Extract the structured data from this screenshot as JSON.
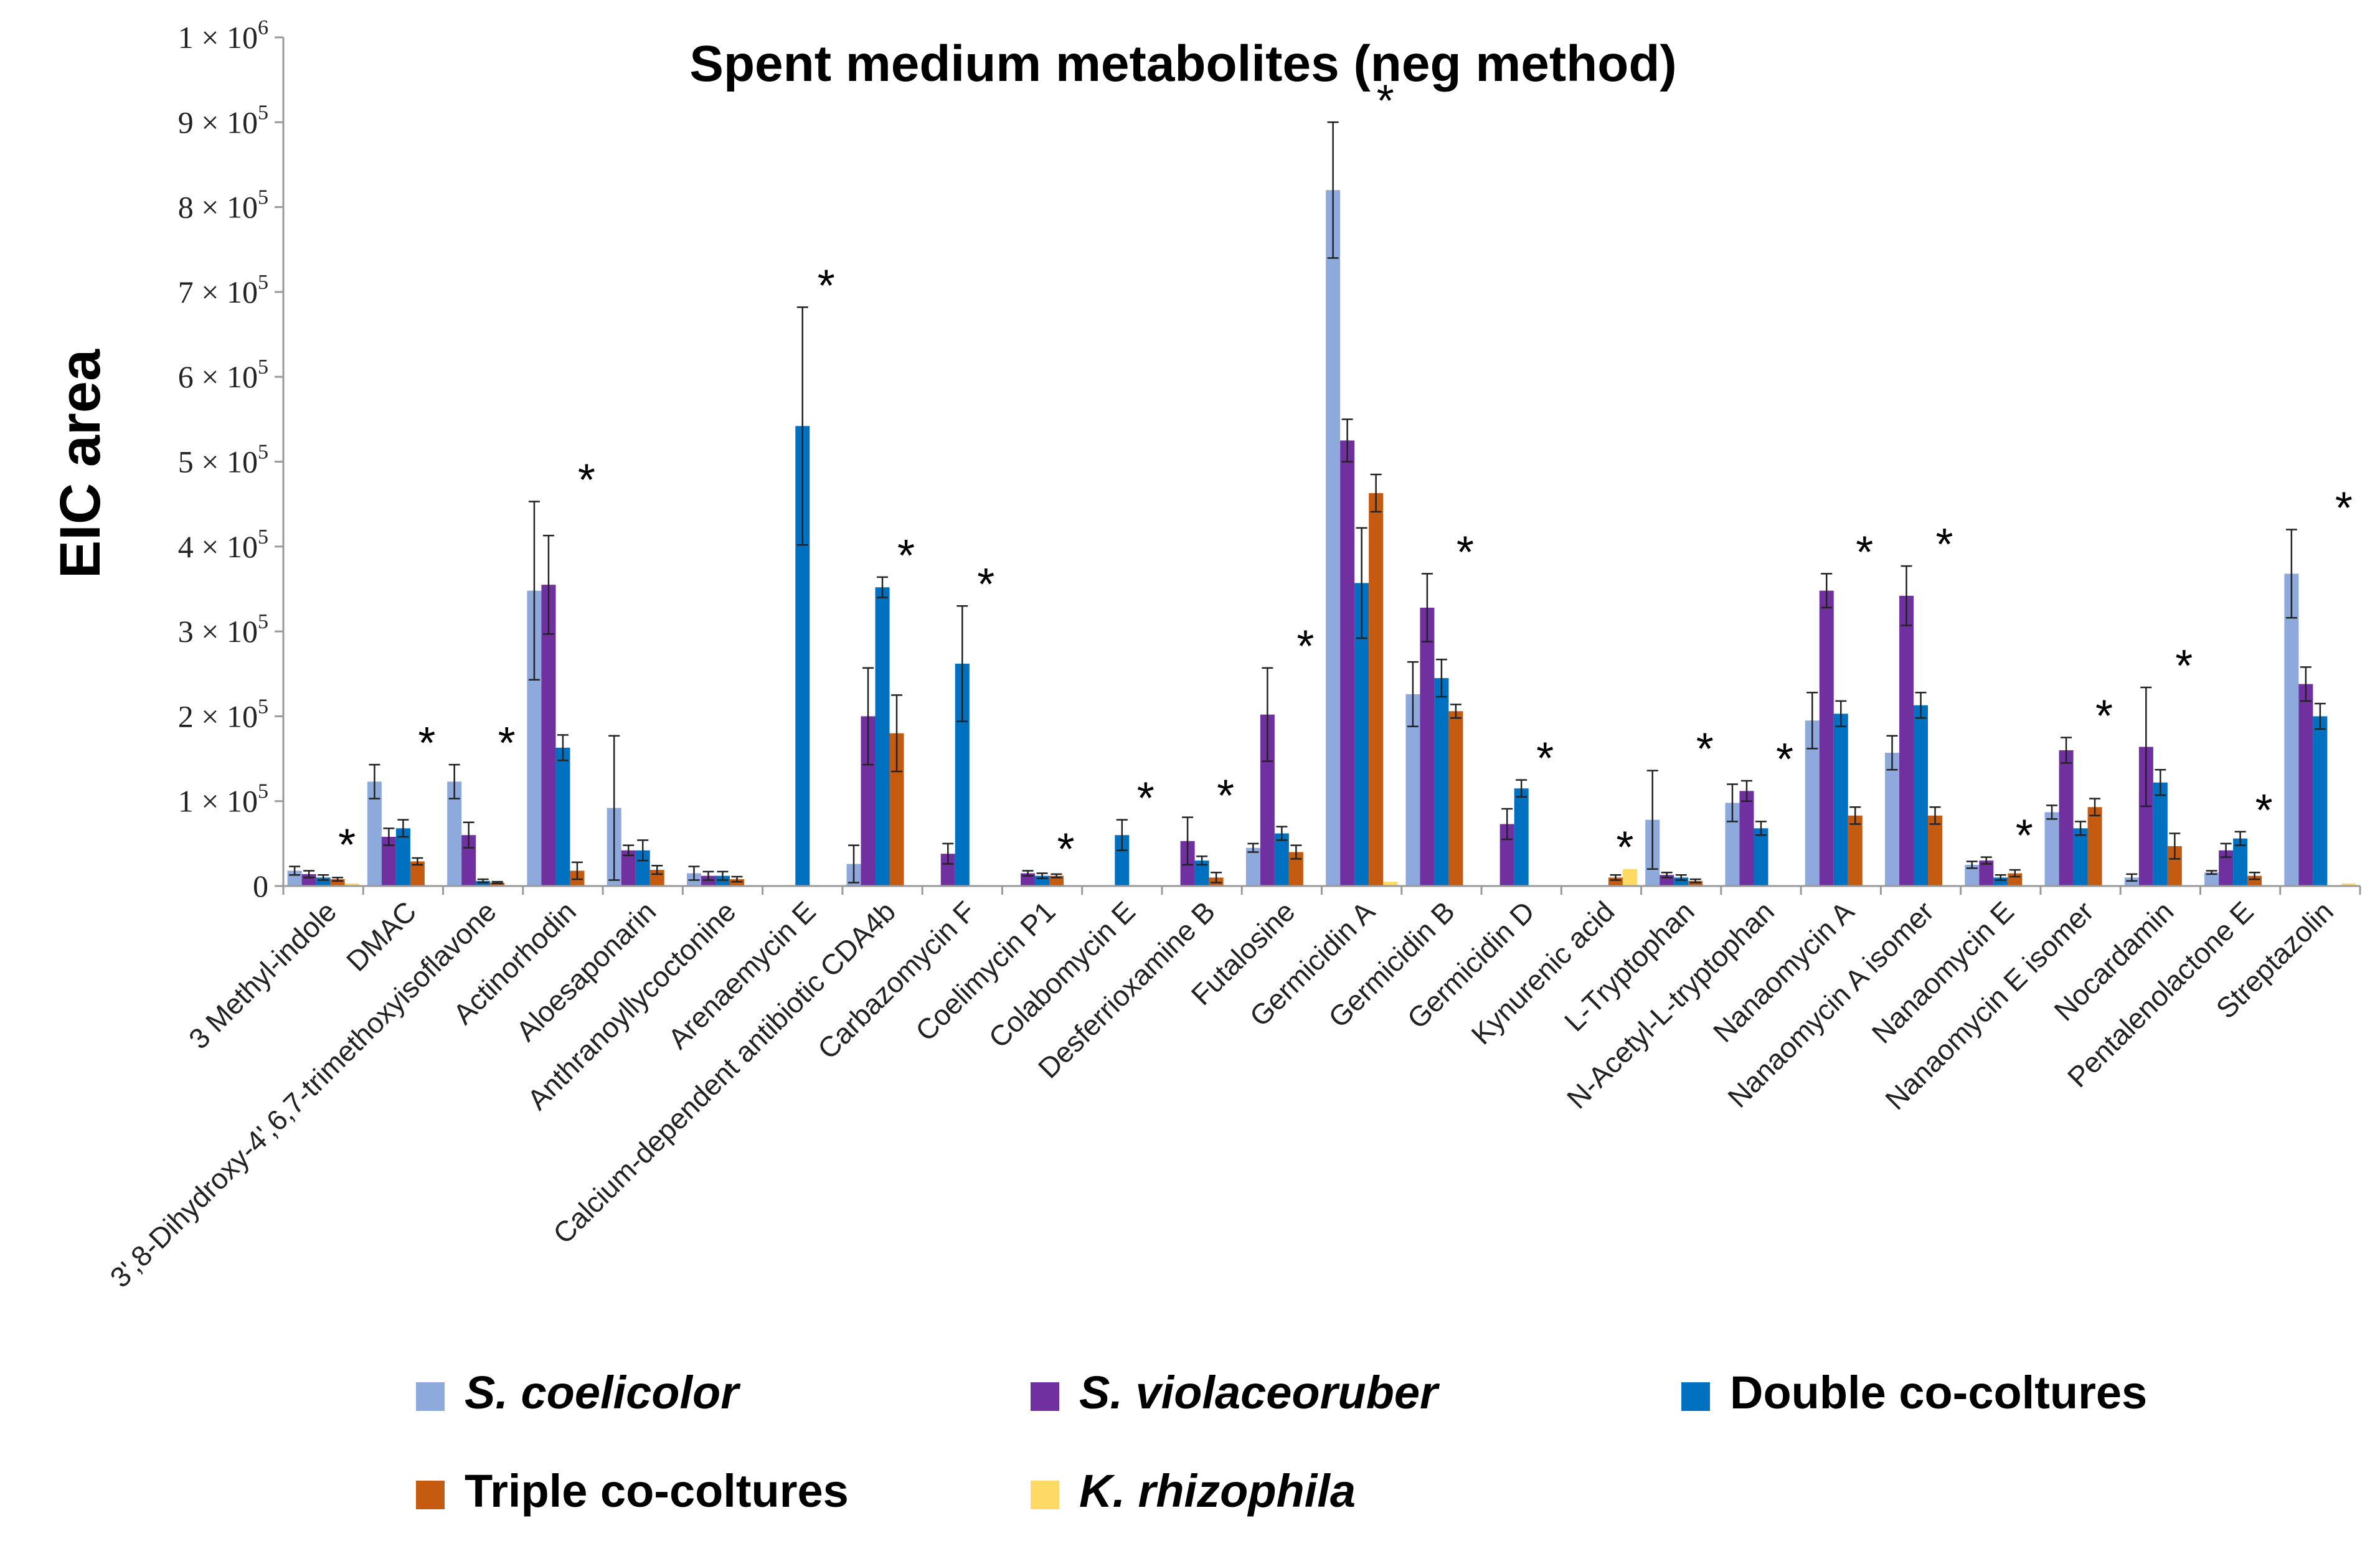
{
  "chart_data": {
    "type": "bar",
    "title": "Spent medium metabolites (neg method)",
    "xlabel": "",
    "ylabel": "EIC area",
    "ylim": [
      0,
      1000000
    ],
    "ytick_values": [
      0,
      100000,
      200000,
      300000,
      400000,
      500000,
      600000,
      700000,
      800000,
      900000,
      1000000
    ],
    "yticks": [
      {
        "base": "0",
        "exp": ""
      },
      {
        "base": "1 × 10",
        "exp": "5"
      },
      {
        "base": "2 × 10",
        "exp": "5"
      },
      {
        "base": "3 × 10",
        "exp": "5"
      },
      {
        "base": "4 × 10",
        "exp": "5"
      },
      {
        "base": "5 × 10",
        "exp": "5"
      },
      {
        "base": "6 × 10",
        "exp": "5"
      },
      {
        "base": "7 × 10",
        "exp": "5"
      },
      {
        "base": "8 × 10",
        "exp": "5"
      },
      {
        "base": "9 × 10",
        "exp": "5"
      },
      {
        "base": "1 × 10",
        "exp": "6"
      }
    ],
    "categories": [
      "3 Methyl-indole",
      "DMAC",
      "3',8-Dihydroxy-4',6,7-trimethoxyisoflavone",
      "Actinorhodin",
      "Aloesaponarin",
      "Anthranoyllycoctonine",
      "Arenaemycin E",
      "Calcium-dependent antibiotic CDA4b",
      "Carbazomycin F",
      "Coelimycin P1",
      "Colabomycin E",
      "Desferrioxamine B",
      "Futalosine",
      "Germicidin A",
      "Germicidin B",
      "Germicidin D",
      "Kynurenic acid",
      "L-Tryptophan",
      "N-Acetyl-L-tryptophan",
      "Nanaomycin A",
      "Nanaomycin A isomer",
      "Nanaomycin E",
      "Nanaomycin E isomer",
      "Nocardamin",
      "Pentalenolactone E",
      "Streptazolin"
    ],
    "significance_marker": "*",
    "significant": [
      true,
      true,
      true,
      true,
      false,
      false,
      true,
      true,
      true,
      true,
      true,
      true,
      true,
      true,
      true,
      true,
      true,
      true,
      true,
      true,
      true,
      true,
      true,
      true,
      true,
      true
    ],
    "series": [
      {
        "name": "S. coelicolor",
        "italic": true,
        "color": "#8EA9DB",
        "values": [
          18000,
          123000,
          123000,
          348000,
          92000,
          15000,
          0,
          26000,
          0,
          0,
          0,
          0,
          45000,
          820000,
          226000,
          0,
          0,
          78000,
          98000,
          195000,
          157000,
          25000,
          87000,
          10000,
          16000,
          368000
        ],
        "errors": [
          5000,
          20000,
          20000,
          105000,
          85000,
          8000,
          0,
          22000,
          0,
          0,
          0,
          0,
          5000,
          80000,
          38000,
          0,
          0,
          58000,
          22000,
          33000,
          20000,
          4000,
          8000,
          4000,
          2000,
          52000
        ]
      },
      {
        "name": "S. violaceoruber",
        "italic": true,
        "color": "#7030A0",
        "values": [
          14000,
          58000,
          60000,
          355000,
          42000,
          12000,
          0,
          200000,
          38000,
          15000,
          0,
          53000,
          202000,
          525000,
          328000,
          73000,
          0,
          13000,
          112000,
          348000,
          342000,
          30000,
          160000,
          164000,
          42000,
          238000
        ],
        "errors": [
          4000,
          10000,
          15000,
          58000,
          6000,
          5000,
          0,
          57000,
          12000,
          3000,
          0,
          28000,
          55000,
          25000,
          40000,
          18000,
          0,
          3000,
          12000,
          20000,
          35000,
          4000,
          15000,
          70000,
          8000,
          20000
        ]
      },
      {
        "name": "Double co-coltures",
        "color": "#0070C0",
        "values": [
          10000,
          68000,
          6000,
          163000,
          42000,
          12000,
          542000,
          352000,
          262000,
          12000,
          60000,
          30000,
          62000,
          357000,
          245000,
          115000,
          0,
          10000,
          68000,
          203000,
          213000,
          10000,
          68000,
          122000,
          56000,
          200000
        ],
        "errors": [
          3000,
          10000,
          2000,
          15000,
          12000,
          5000,
          140000,
          12000,
          68000,
          3000,
          18000,
          5000,
          8000,
          65000,
          22000,
          10000,
          0,
          3000,
          8000,
          15000,
          15000,
          3000,
          8000,
          15000,
          8000,
          15000
        ]
      },
      {
        "name": "Triple co-coltures",
        "color": "#C55A11",
        "values": [
          8000,
          29000,
          4000,
          18000,
          19000,
          8000,
          0,
          180000,
          0,
          12000,
          0,
          10000,
          40000,
          463000,
          206000,
          0,
          10000,
          6000,
          0,
          83000,
          83000,
          15000,
          93000,
          47000,
          12000,
          0
        ],
        "errors": [
          2000,
          4000,
          1000,
          10000,
          5000,
          3000,
          0,
          45000,
          0,
          2000,
          0,
          6000,
          8000,
          22000,
          8000,
          0,
          3000,
          2000,
          0,
          10000,
          10000,
          4000,
          10000,
          15000,
          4000,
          0
        ]
      },
      {
        "name": "K. rhizophila",
        "italic": true,
        "color": "#FFD966",
        "values": [
          3000,
          0,
          0,
          0,
          0,
          0,
          0,
          0,
          0,
          0,
          0,
          0,
          0,
          5000,
          0,
          0,
          20000,
          0,
          0,
          0,
          0,
          0,
          0,
          0,
          0,
          3000
        ],
        "errors": [
          0,
          0,
          0,
          0,
          0,
          0,
          0,
          0,
          0,
          0,
          0,
          0,
          0,
          0,
          0,
          0,
          0,
          0,
          0,
          0,
          0,
          0,
          0,
          0,
          0,
          0
        ]
      }
    ],
    "legend_position": "bottom"
  }
}
